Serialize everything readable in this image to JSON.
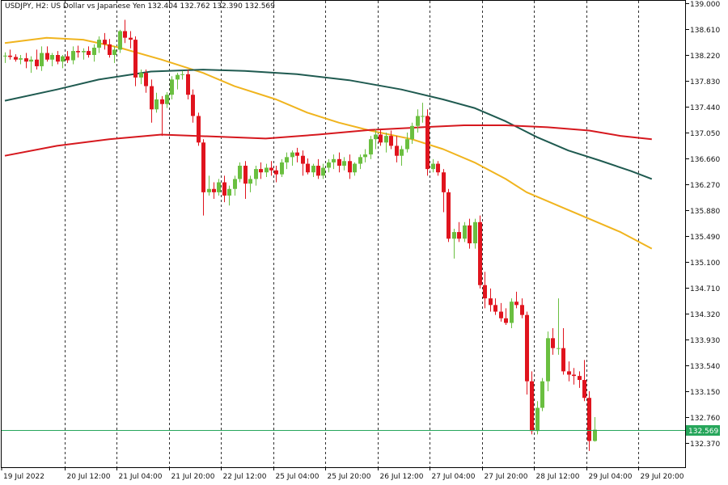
{
  "header": {
    "symbol_tf": "USDJPY, H2:",
    "description": "US Dollar vs Japanese Yen",
    "ohlc": "132.404 132.762 132.390 132.569"
  },
  "chart_data": {
    "type": "candlestick",
    "symbol": "USDJPY",
    "timeframe": "H2",
    "ylim": [
      132.15,
      139.0
    ],
    "price_ticks": [
      "139.000",
      "138.610",
      "138.220",
      "137.830",
      "137.440",
      "137.050",
      "136.660",
      "136.270",
      "135.880",
      "135.490",
      "135.100",
      "134.710",
      "134.320",
      "133.930",
      "133.540",
      "133.150",
      "132.760",
      "132.370"
    ],
    "time_labels": [
      "19 Jul 2022",
      "20 Jul 12:00",
      "21 Jul 04:00",
      "21 Jul 20:00",
      "22 Jul 12:00",
      "25 Jul 04:00",
      "25 Jul 20:00",
      "26 Jul 12:00",
      "27 Jul 04:00",
      "27 Jul 20:00",
      "28 Jul 12:00",
      "29 Jul 04:00",
      "29 Jul 20:00"
    ],
    "time_label_bars": [
      0,
      11,
      21,
      31,
      41,
      51,
      61,
      71,
      81,
      91,
      101,
      111,
      121
    ],
    "current_price": "132.569",
    "colors": {
      "bull": "#6abf40",
      "bear": "#e0141e",
      "ma_yellow": "#f0b41e",
      "ma_teal": "#1f5a50",
      "ma_red": "#d6181e",
      "current_line": "#26a65b",
      "current_tag": "#26a65b"
    },
    "candles": [
      [
        138.2,
        138.26,
        138.1,
        138.21
      ],
      [
        138.21,
        138.3,
        138.15,
        138.19
      ],
      [
        138.19,
        138.23,
        138.12,
        138.15
      ],
      [
        138.15,
        138.22,
        138.08,
        138.17
      ],
      [
        138.17,
        138.25,
        138.02,
        138.12
      ],
      [
        138.12,
        138.2,
        137.95,
        138.15
      ],
      [
        138.15,
        138.3,
        138.0,
        138.05
      ],
      [
        138.05,
        138.35,
        137.98,
        138.25
      ],
      [
        138.25,
        138.35,
        138.12,
        138.15
      ],
      [
        138.15,
        138.25,
        138.05,
        138.22
      ],
      [
        138.22,
        138.28,
        138.08,
        138.12
      ],
      [
        138.12,
        138.22,
        138.02,
        138.2
      ],
      [
        138.2,
        138.28,
        138.1,
        138.14
      ],
      [
        138.14,
        138.35,
        138.08,
        138.28
      ],
      [
        138.28,
        138.36,
        138.18,
        138.26
      ],
      [
        138.26,
        138.32,
        138.15,
        138.28
      ],
      [
        138.28,
        138.35,
        138.18,
        138.22
      ],
      [
        138.22,
        138.38,
        138.12,
        138.33
      ],
      [
        138.33,
        138.5,
        138.25,
        138.45
      ],
      [
        138.45,
        138.55,
        138.3,
        138.38
      ],
      [
        138.38,
        138.46,
        138.18,
        138.22
      ],
      [
        138.22,
        138.35,
        138.1,
        138.3
      ],
      [
        138.3,
        138.6,
        138.25,
        138.58
      ],
      [
        138.58,
        138.75,
        138.4,
        138.48
      ],
      [
        138.48,
        138.58,
        138.32,
        138.45
      ],
      [
        138.45,
        138.5,
        137.75,
        137.88
      ],
      [
        137.88,
        138.0,
        137.78,
        137.95
      ],
      [
        137.95,
        138.0,
        137.65,
        137.75
      ],
      [
        137.75,
        137.85,
        137.2,
        137.4
      ],
      [
        137.4,
        137.65,
        137.35,
        137.55
      ],
      [
        137.55,
        137.6,
        137.0,
        137.48
      ],
      [
        137.48,
        137.66,
        137.42,
        137.62
      ],
      [
        137.62,
        137.9,
        137.55,
        137.85
      ],
      [
        137.85,
        137.95,
        137.7,
        137.92
      ],
      [
        137.92,
        137.98,
        137.85,
        137.93
      ],
      [
        137.93,
        138.0,
        137.55,
        137.62
      ],
      [
        137.62,
        137.7,
        137.2,
        137.3
      ],
      [
        137.3,
        137.35,
        136.85,
        136.9
      ],
      [
        136.9,
        136.95,
        135.8,
        136.15
      ],
      [
        136.15,
        136.4,
        136.1,
        136.2
      ],
      [
        136.2,
        136.3,
        136.05,
        136.15
      ],
      [
        136.15,
        136.35,
        136.1,
        136.3
      ],
      [
        136.3,
        136.4,
        136.0,
        136.1
      ],
      [
        136.1,
        136.25,
        135.95,
        136.2
      ],
      [
        136.2,
        136.4,
        136.1,
        136.35
      ],
      [
        136.35,
        136.6,
        136.3,
        136.55
      ],
      [
        136.55,
        136.62,
        136.05,
        136.28
      ],
      [
        136.28,
        136.4,
        136.15,
        136.35
      ],
      [
        136.35,
        136.55,
        136.25,
        136.5
      ],
      [
        136.5,
        136.6,
        136.35,
        136.45
      ],
      [
        136.45,
        136.58,
        136.38,
        136.52
      ],
      [
        136.52,
        136.62,
        136.4,
        136.48
      ],
      [
        136.48,
        136.55,
        136.3,
        136.42
      ],
      [
        136.42,
        136.65,
        136.38,
        136.6
      ],
      [
        136.6,
        136.75,
        136.5,
        136.68
      ],
      [
        136.68,
        136.78,
        136.55,
        136.75
      ],
      [
        136.75,
        136.82,
        136.6,
        136.7
      ],
      [
        136.7,
        136.78,
        136.4,
        136.58
      ],
      [
        136.58,
        136.66,
        136.42,
        136.45
      ],
      [
        136.45,
        136.58,
        136.38,
        136.55
      ],
      [
        136.55,
        136.65,
        136.35,
        136.4
      ],
      [
        136.4,
        136.58,
        136.35,
        136.52
      ],
      [
        136.52,
        136.65,
        136.45,
        136.6
      ],
      [
        136.6,
        136.72,
        136.5,
        136.65
      ],
      [
        136.65,
        136.75,
        136.45,
        136.55
      ],
      [
        136.55,
        136.68,
        136.48,
        136.62
      ],
      [
        136.62,
        136.72,
        136.35,
        136.45
      ],
      [
        136.45,
        136.6,
        136.4,
        136.58
      ],
      [
        136.58,
        136.72,
        136.5,
        136.68
      ],
      [
        136.68,
        136.8,
        136.6,
        136.72
      ],
      [
        136.72,
        137.0,
        136.65,
        136.95
      ],
      [
        136.95,
        137.1,
        136.8,
        137.02
      ],
      [
        137.02,
        137.1,
        136.85,
        136.9
      ],
      [
        136.9,
        137.05,
        136.75,
        137.0
      ],
      [
        137.0,
        137.08,
        136.8,
        136.85
      ],
      [
        136.85,
        137.0,
        136.6,
        136.7
      ],
      [
        136.7,
        136.85,
        136.55,
        136.8
      ],
      [
        136.8,
        137.05,
        136.75,
        136.95
      ],
      [
        136.95,
        137.2,
        136.88,
        137.15
      ],
      [
        137.15,
        137.4,
        137.05,
        137.3
      ],
      [
        137.3,
        137.5,
        137.2,
        137.3
      ],
      [
        137.3,
        137.4,
        136.4,
        136.5
      ],
      [
        136.5,
        136.65,
        136.45,
        136.58
      ],
      [
        136.58,
        136.62,
        136.4,
        136.45
      ],
      [
        136.45,
        136.5,
        135.85,
        136.15
      ],
      [
        136.15,
        136.2,
        135.4,
        135.45
      ],
      [
        135.45,
        135.6,
        135.15,
        135.55
      ],
      [
        135.55,
        135.7,
        135.4,
        135.45
      ],
      [
        135.45,
        135.7,
        135.4,
        135.65
      ],
      [
        135.65,
        135.75,
        135.3,
        135.38
      ],
      [
        135.38,
        135.75,
        135.3,
        135.7
      ],
      [
        135.7,
        135.8,
        134.7,
        134.75
      ],
      [
        134.75,
        134.95,
        134.4,
        134.55
      ],
      [
        134.55,
        134.7,
        134.35,
        134.45
      ],
      [
        134.45,
        134.55,
        134.3,
        134.35
      ],
      [
        134.35,
        134.48,
        134.2,
        134.25
      ],
      [
        134.25,
        134.4,
        134.15,
        134.18
      ],
      [
        134.18,
        134.55,
        134.1,
        134.5
      ],
      [
        134.5,
        134.65,
        134.4,
        134.45
      ],
      [
        134.45,
        134.55,
        134.25,
        134.3
      ],
      [
        134.3,
        134.35,
        133.1,
        133.3
      ],
      [
        133.3,
        133.45,
        132.5,
        132.55
      ],
      [
        132.55,
        133.0,
        132.5,
        132.9
      ],
      [
        132.9,
        133.35,
        132.85,
        133.3
      ],
      [
        133.3,
        134.05,
        133.15,
        133.95
      ],
      [
        133.95,
        134.1,
        133.7,
        133.8
      ],
      [
        133.8,
        134.55,
        133.7,
        133.8
      ],
      [
        133.8,
        134.1,
        133.4,
        133.45
      ],
      [
        133.45,
        133.6,
        133.3,
        133.4
      ],
      [
        133.4,
        133.5,
        133.25,
        133.38
      ],
      [
        133.38,
        133.45,
        133.2,
        133.32
      ],
      [
        133.32,
        133.62,
        133.0,
        133.05
      ],
      [
        133.05,
        133.15,
        132.25,
        132.4
      ],
      [
        132.4,
        132.76,
        132.39,
        132.57
      ]
    ],
    "moving_averages": [
      {
        "color": "#f0b41e",
        "points": [
          [
            0,
            138.4
          ],
          [
            8,
            138.48
          ],
          [
            15,
            138.45
          ],
          [
            22,
            138.33
          ],
          [
            30,
            138.15
          ],
          [
            38,
            137.95
          ],
          [
            44,
            137.75
          ],
          [
            52,
            137.55
          ],
          [
            58,
            137.35
          ],
          [
            64,
            137.2
          ],
          [
            70,
            137.08
          ],
          [
            78,
            136.95
          ],
          [
            84,
            136.8
          ],
          [
            90,
            136.6
          ],
          [
            96,
            136.35
          ],
          [
            100,
            136.15
          ],
          [
            106,
            135.95
          ],
          [
            112,
            135.75
          ],
          [
            118,
            135.55
          ],
          [
            124,
            135.3
          ]
        ]
      },
      {
        "color": "#1f5a50",
        "points": [
          [
            0,
            137.53
          ],
          [
            10,
            137.7
          ],
          [
            18,
            137.85
          ],
          [
            28,
            137.97
          ],
          [
            38,
            138.0
          ],
          [
            46,
            137.98
          ],
          [
            56,
            137.93
          ],
          [
            66,
            137.84
          ],
          [
            76,
            137.7
          ],
          [
            84,
            137.55
          ],
          [
            90,
            137.42
          ],
          [
            96,
            137.22
          ],
          [
            102,
            136.98
          ],
          [
            108,
            136.78
          ],
          [
            114,
            136.63
          ],
          [
            120,
            136.47
          ],
          [
            124,
            136.35
          ]
        ]
      },
      {
        "color": "#d6181e",
        "points": [
          [
            0,
            136.7
          ],
          [
            10,
            136.85
          ],
          [
            20,
            136.95
          ],
          [
            30,
            137.02
          ],
          [
            40,
            136.99
          ],
          [
            50,
            136.96
          ],
          [
            60,
            137.02
          ],
          [
            70,
            137.09
          ],
          [
            80,
            137.13
          ],
          [
            88,
            137.16
          ],
          [
            96,
            137.16
          ],
          [
            104,
            137.13
          ],
          [
            112,
            137.08
          ],
          [
            118,
            137.0
          ],
          [
            124,
            136.95
          ]
        ]
      }
    ]
  }
}
